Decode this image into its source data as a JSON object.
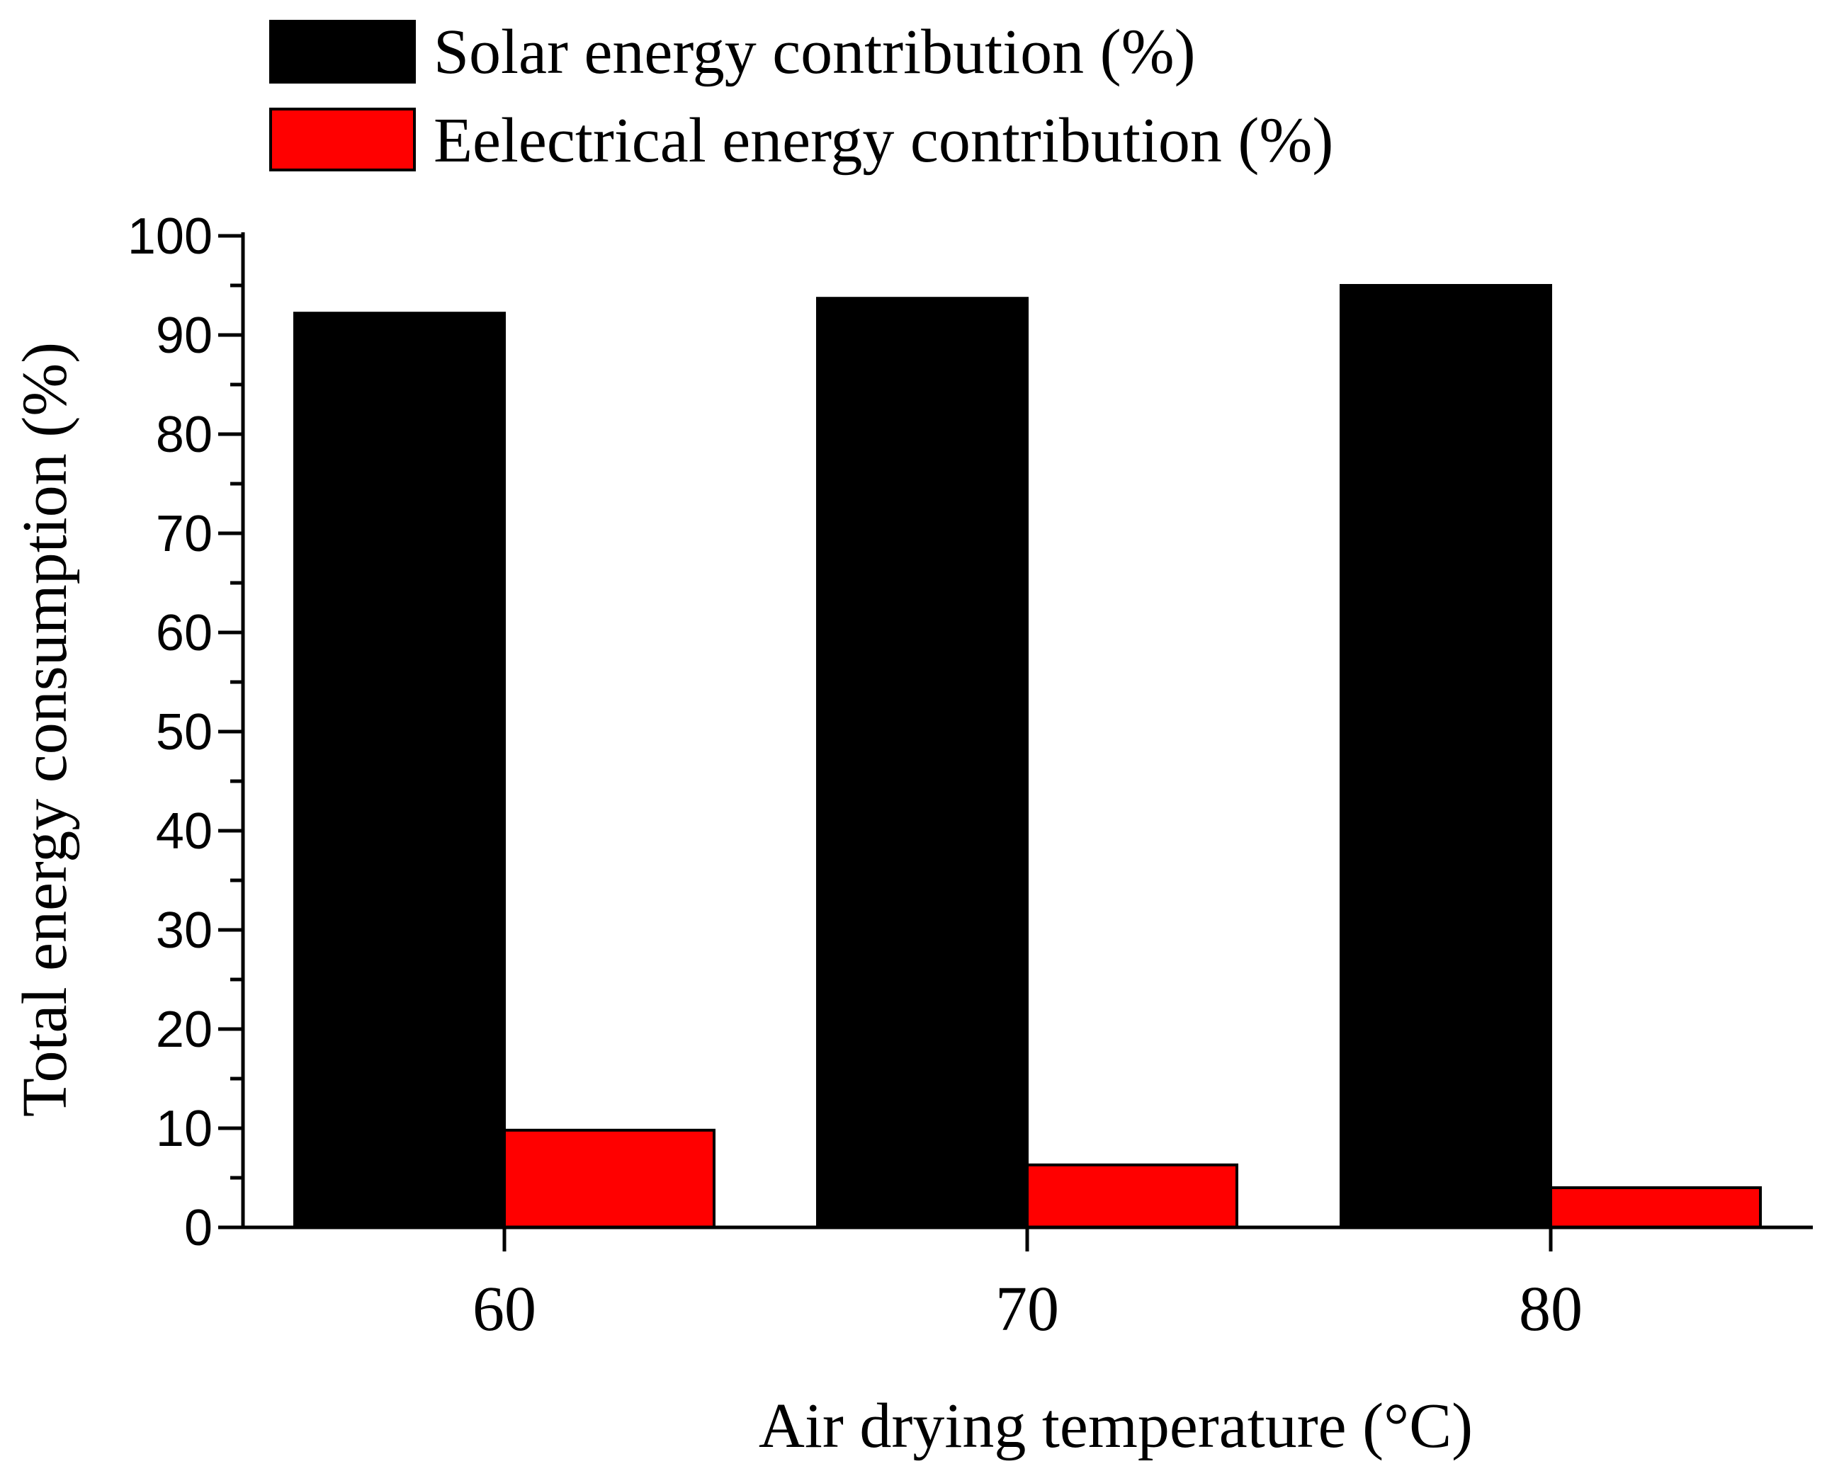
{
  "chart_data": {
    "type": "bar",
    "title": "",
    "xlabel": "Air drying temperature  (°C)",
    "ylabel": "Total energy consumption (%)",
    "categories": [
      "60",
      "70",
      "80"
    ],
    "series": [
      {
        "name": "Solar energy contribution (%)",
        "color": "#000000",
        "values": [
          92.2,
          93.7,
          95.0
        ]
      },
      {
        "name": "Eelectrical energy contribution (%)",
        "color": "#ff0000",
        "values": [
          9.8,
          6.3,
          4.0
        ]
      }
    ],
    "ylim": [
      0,
      100
    ],
    "yticks": [
      0,
      10,
      20,
      30,
      40,
      50,
      60,
      70,
      80,
      90,
      100
    ],
    "ytick_labels": [
      "0",
      "10",
      "20",
      "30",
      "40",
      "50",
      "60",
      "70",
      "80",
      "90",
      "100"
    ],
    "grid": false,
    "legend_position": "top-left"
  }
}
